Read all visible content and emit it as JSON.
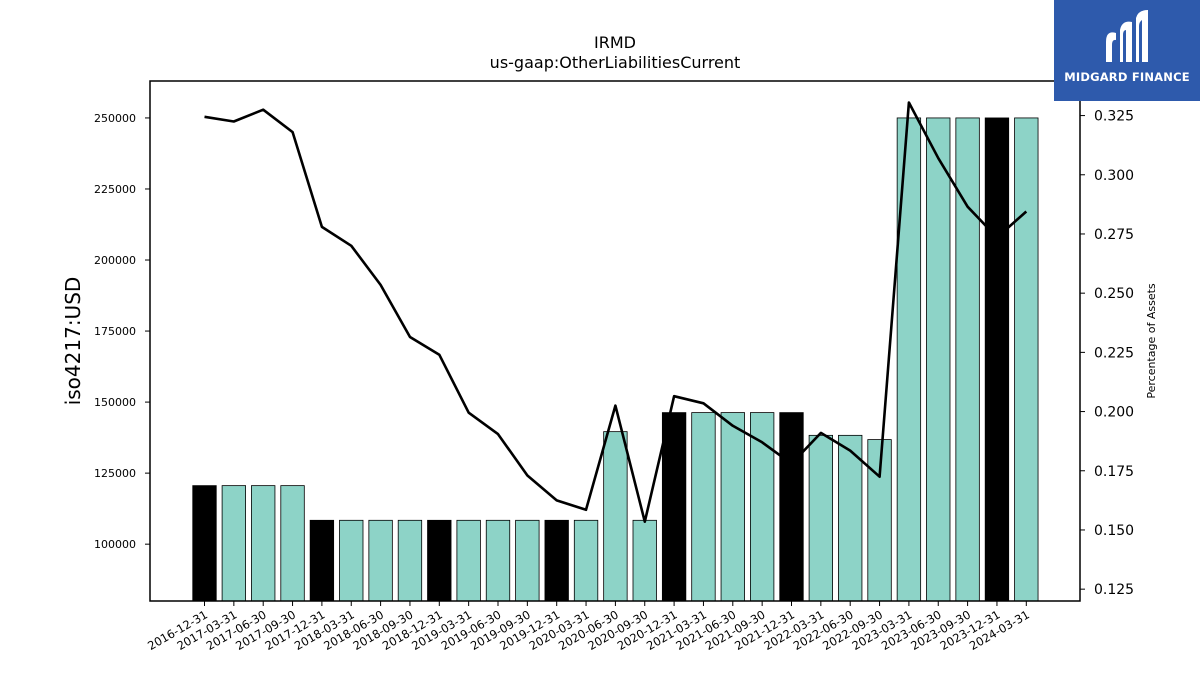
{
  "logo": {
    "text": "MIDGARD FINANCE",
    "icon": "midgard-m-icon",
    "background": "#2e5aac"
  },
  "chart_data": {
    "type": "bar",
    "title": "IRMD",
    "subtitle": "us-gaap:OtherLiabilitiesCurrent",
    "ylabel": "iso4217:USD",
    "y2label": "Percentage of Assets",
    "ylim": [
      80000,
      263000
    ],
    "y2lim": [
      0.12,
      0.3396
    ],
    "yticks": [
      100000,
      125000,
      150000,
      175000,
      200000,
      225000,
      250000
    ],
    "y2ticks": [
      "0.125",
      "0.150",
      "0.175",
      "0.200",
      "0.225",
      "0.250",
      "0.275",
      "0.300",
      "0.325"
    ],
    "categories": [
      "2016-12-31",
      "2017-03-31",
      "2017-06-30",
      "2017-09-30",
      "2017-12-31",
      "2018-03-31",
      "2018-06-30",
      "2018-09-30",
      "2018-12-31",
      "2019-03-31",
      "2019-06-30",
      "2019-09-30",
      "2019-12-31",
      "2020-03-31",
      "2020-06-30",
      "2020-09-30",
      "2020-12-31",
      "2021-03-31",
      "2021-06-30",
      "2021-09-30",
      "2021-12-31",
      "2022-03-31",
      "2022-06-30",
      "2022-09-30",
      "2023-03-31",
      "2023-06-30",
      "2023-09-30",
      "2023-12-31",
      "2024-03-31"
    ],
    "series": [
      {
        "kind": "bar",
        "values": [
          120600,
          120600,
          120600,
          120600,
          108400,
          108400,
          108400,
          108400,
          108400,
          108400,
          108400,
          108400,
          108400,
          108400,
          139600,
          108400,
          146300,
          146300,
          146300,
          146300,
          146300,
          138300,
          138300,
          136800,
          250000,
          250000,
          250000,
          250000,
          250000
        ],
        "colors": [
          "#000000",
          "#8dd3c7",
          "#8dd3c7",
          "#8dd3c7",
          "#000000",
          "#8dd3c7",
          "#8dd3c7",
          "#8dd3c7",
          "#000000",
          "#8dd3c7",
          "#8dd3c7",
          "#8dd3c7",
          "#000000",
          "#8dd3c7",
          "#8dd3c7",
          "#8dd3c7",
          "#000000",
          "#8dd3c7",
          "#8dd3c7",
          "#8dd3c7",
          "#000000",
          "#8dd3c7",
          "#8dd3c7",
          "#8dd3c7",
          "#8dd3c7",
          "#8dd3c7",
          "#8dd3c7",
          "#000000",
          "#8dd3c7"
        ]
      },
      {
        "kind": "line",
        "axis": "right",
        "color": "#000000",
        "values": [
          0.3245,
          0.3225,
          0.3275,
          0.318,
          0.278,
          0.27,
          0.2535,
          0.2315,
          0.224,
          0.1995,
          0.1905,
          0.173,
          0.1625,
          0.1585,
          0.2025,
          0.1535,
          0.2065,
          0.2035,
          0.194,
          0.187,
          0.178,
          0.191,
          0.1835,
          0.1725,
          0.3305,
          0.307,
          0.2865,
          0.2735,
          0.2845
        ]
      }
    ],
    "grid": false
  }
}
